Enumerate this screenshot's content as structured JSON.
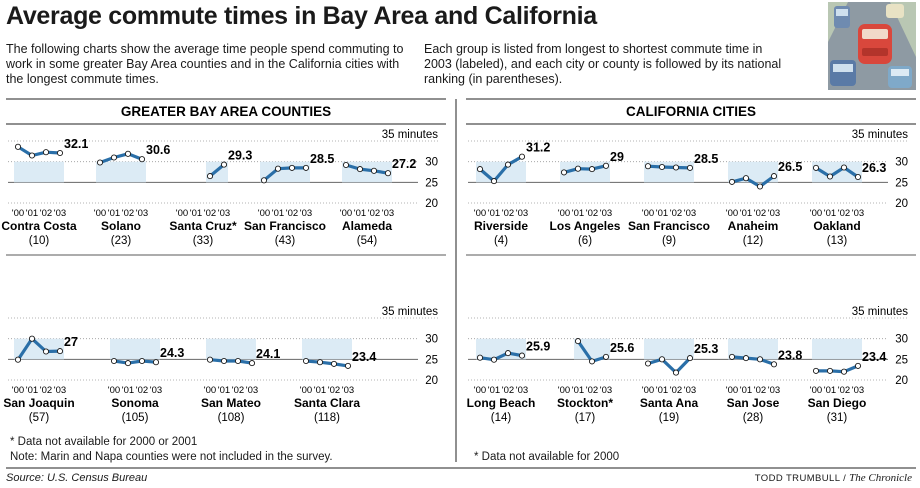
{
  "title": "Average commute times in Bay Area and California",
  "intro_left": "The following charts show the average time people spend commuting to work in some greater Bay Area counties and in the California cities with the longest commute times.",
  "intro_right": "Each group is listed from longest to shortest commute time in 2003 (labeled), and each city or county is followed by its national ranking (in parentheses).",
  "footnotes": {
    "left_1": "* Data not available for 2000 or 2001",
    "left_2": "Note: Marin and Napa counties were not included in the survey.",
    "right_1": "* Data not available for 2000"
  },
  "source": "Source: U.S. Census Bureau",
  "credit_author": "TODD TRUMBULL",
  "credit_separator": " / ",
  "credit_publication": "The Chronicle",
  "colors": {
    "line": "#2a6fa8",
    "fill": "#d6e7f3",
    "grid": "#9a9a9a",
    "point_fill": "#ffffff"
  },
  "chart_data": [
    {
      "type": "line",
      "title": "GREATER BAY AREA COUNTIES",
      "unit_label": "35 minutes",
      "x": [
        "'00",
        "'01",
        "'02",
        "'03"
      ],
      "ylim": [
        20,
        35
      ],
      "yticks": [
        20,
        25,
        30
      ],
      "rows": [
        [
          {
            "name": "Contra Costa",
            "rank": "(10)",
            "values": [
              33.6,
              31.5,
              32.3,
              32.1
            ],
            "label": "32.1"
          },
          {
            "name": "Solano",
            "rank": "(23)",
            "values": [
              29.8,
              31.0,
              31.9,
              30.6
            ],
            "label": "30.6"
          },
          {
            "name": "Santa Cruz*",
            "rank": "(33)",
            "values": [
              null,
              null,
              26.5,
              29.3
            ],
            "label": "29.3"
          },
          {
            "name": "San Francisco",
            "rank": "(43)",
            "values": [
              25.5,
              28.3,
              28.5,
              28.5
            ],
            "label": "28.5"
          },
          {
            "name": "Alameda",
            "rank": "(54)",
            "values": [
              29.2,
              28.2,
              27.8,
              27.2
            ],
            "label": "27.2"
          }
        ],
        [
          {
            "name": "San Joaquin",
            "rank": "(57)",
            "values": [
              24.9,
              30.0,
              26.9,
              27.0
            ],
            "label": "27"
          },
          {
            "name": "Sonoma",
            "rank": "(105)",
            "values": [
              24.6,
              24.1,
              24.6,
              24.3
            ],
            "label": "24.3"
          },
          {
            "name": "San Mateo",
            "rank": "(108)",
            "values": [
              24.9,
              24.6,
              24.6,
              24.1
            ],
            "label": "24.1"
          },
          {
            "name": "Santa Clara",
            "rank": "(118)",
            "values": [
              24.6,
              24.3,
              23.9,
              23.4
            ],
            "label": "23.4"
          }
        ]
      ]
    },
    {
      "type": "line",
      "title": "CALIFORNIA CITIES",
      "unit_label": "35 minutes",
      "x": [
        "'00",
        "'01",
        "'02",
        "'03"
      ],
      "ylim": [
        20,
        35
      ],
      "yticks": [
        20,
        25,
        30
      ],
      "rows": [
        [
          {
            "name": "Riverside",
            "rank": "(4)",
            "values": [
              28.2,
              25.3,
              29.3,
              31.2
            ],
            "label": "31.2"
          },
          {
            "name": "Los Angeles",
            "rank": "(6)",
            "values": [
              27.4,
              28.3,
              28.2,
              29.0
            ],
            "label": "29"
          },
          {
            "name": "San Francisco",
            "rank": "(9)",
            "values": [
              28.9,
              28.7,
              28.6,
              28.5
            ],
            "label": "28.5"
          },
          {
            "name": "Anaheim",
            "rank": "(12)",
            "values": [
              25.1,
              26.0,
              24.0,
              26.5
            ],
            "label": "26.5"
          },
          {
            "name": "Oakland",
            "rank": "(13)",
            "values": [
              28.5,
              26.4,
              28.6,
              26.3
            ],
            "label": "26.3"
          }
        ],
        [
          {
            "name": "Long Beach",
            "rank": "(14)",
            "values": [
              25.4,
              24.9,
              26.5,
              25.9
            ],
            "label": "25.9"
          },
          {
            "name": "Stockton*",
            "rank": "(17)",
            "values": [
              null,
              29.4,
              24.5,
              25.6
            ],
            "label": "25.6"
          },
          {
            "name": "Santa Ana",
            "rank": "(19)",
            "values": [
              24.0,
              25.0,
              21.8,
              25.3
            ],
            "label": "25.3"
          },
          {
            "name": "San Jose",
            "rank": "(28)",
            "values": [
              25.6,
              25.3,
              25.0,
              23.8
            ],
            "label": "23.8"
          },
          {
            "name": "San Diego",
            "rank": "(31)",
            "values": [
              22.2,
              22.2,
              22.0,
              23.4
            ],
            "label": "23.4"
          }
        ]
      ]
    }
  ]
}
